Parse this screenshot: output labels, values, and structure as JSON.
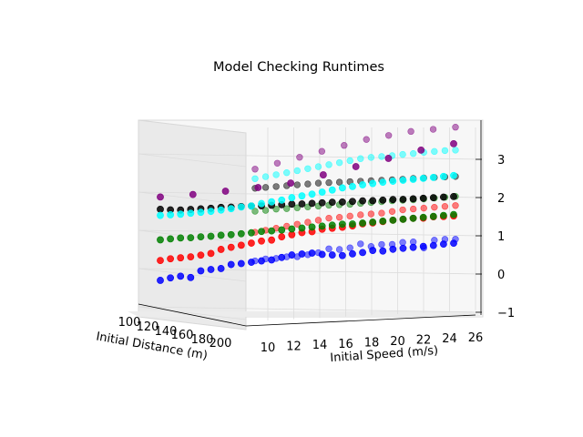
{
  "chart_data": {
    "type": "scatter",
    "projection": "3d",
    "title": "Model Checking Runtimes",
    "xlabel": "Initial Speed (m/s)",
    "ylabel": "Initial Distance (m)",
    "zlabel": "",
    "x_ticks": [
      "10",
      "12",
      "14",
      "16",
      "18",
      "20",
      "22",
      "24",
      "26"
    ],
    "y_ticks": [
      "100",
      "120",
      "140",
      "160",
      "180",
      "200"
    ],
    "z_ticks": [
      "−1",
      "0",
      "1",
      "2",
      "3"
    ],
    "xlim": [
      9,
      26
    ],
    "ylim": [
      100,
      200
    ],
    "zlim": [
      -1,
      3.8
    ],
    "grid": true,
    "series": [
      {
        "color": "#0000ff",
        "front": [
          0.12,
          0.18,
          0.22,
          0.18,
          0.35,
          0.38,
          0.4,
          0.5,
          0.52,
          0.55,
          0.58,
          0.6,
          0.66,
          0.72,
          0.74,
          0.76,
          0.72,
          0.7,
          0.68,
          0.72,
          0.75,
          0.8,
          0.78,
          0.82,
          0.84,
          0.86,
          0.88,
          0.9,
          0.93,
          0.95
        ],
        "back": [
          0.2,
          0.25,
          0.26,
          0.3,
          0.3,
          0.35,
          0.4,
          0.5,
          0.48,
          0.52,
          0.62,
          0.55,
          0.6,
          0.6,
          0.65,
          0.66,
          0.5,
          0.7,
          0.72,
          0.72
        ]
      },
      {
        "color": "#ff0000",
        "front": [
          0.64,
          0.68,
          0.7,
          0.72,
          0.76,
          0.8,
          0.9,
          0.95,
          1.0,
          1.05,
          1.1,
          1.12,
          1.2,
          1.25,
          1.3,
          1.32,
          1.38,
          1.4,
          1.42,
          1.45,
          1.5,
          1.52,
          1.55,
          1.58,
          1.6,
          1.62,
          1.62,
          1.65,
          1.65,
          1.66
        ],
        "back": [
          0.95,
          1.0,
          1.05,
          1.1,
          1.15,
          1.2,
          1.25,
          1.3,
          1.32,
          1.35,
          1.38,
          1.4,
          1.42,
          1.46,
          1.5,
          1.52,
          1.54,
          1.56,
          1.58,
          1.6
        ]
      },
      {
        "color": "#008000",
        "front": [
          1.18,
          1.2,
          1.22,
          1.22,
          1.24,
          1.25,
          1.27,
          1.28,
          1.3,
          1.32,
          1.35,
          1.36,
          1.38,
          1.4,
          1.42,
          1.44,
          1.46,
          1.48,
          1.5,
          1.5,
          1.52,
          1.54,
          1.56,
          1.58,
          1.6,
          1.62,
          1.64,
          1.66,
          1.68,
          1.7
        ],
        "back": [
          1.5,
          1.52,
          1.55,
          1.56,
          1.58,
          1.6,
          1.62,
          1.64,
          1.65,
          1.66,
          1.68,
          1.7,
          1.72,
          1.74,
          1.75,
          1.76,
          1.78,
          1.8,
          1.82,
          1.84
        ]
      },
      {
        "color": "#000000",
        "front": [
          1.98,
          1.96,
          1.95,
          1.96,
          1.97,
          1.98,
          2.0,
          2.0,
          2.01,
          2.02,
          2.02,
          2.03,
          2.04,
          2.05,
          2.05,
          2.06,
          2.07,
          2.08,
          2.08,
          2.09,
          2.1,
          2.1,
          2.11,
          2.12,
          2.12,
          2.13,
          2.14,
          2.15,
          2.16,
          2.17
        ],
        "back": [
          2.1,
          2.12,
          2.14,
          2.16,
          2.18,
          2.2,
          2.22,
          2.23,
          2.24,
          2.25,
          2.26,
          2.27,
          2.28,
          2.29,
          2.3,
          2.32,
          2.33,
          2.34,
          2.35,
          2.36
        ]
      },
      {
        "color": "#00ffff",
        "front": [
          1.82,
          1.83,
          1.84,
          1.86,
          1.88,
          1.9,
          1.93,
          1.96,
          2.0,
          2.02,
          2.08,
          2.12,
          2.16,
          2.22,
          2.26,
          2.3,
          2.35,
          2.4,
          2.45,
          2.48,
          2.52,
          2.55,
          2.58,
          2.6,
          2.62,
          2.64,
          2.66,
          2.68,
          2.7,
          2.72
        ],
        "back": [
          2.35,
          2.4,
          2.45,
          2.5,
          2.55,
          2.6,
          2.65,
          2.7,
          2.75,
          2.8,
          2.85,
          2.88,
          2.9,
          2.92,
          2.95,
          2.97,
          3.0,
          3.02,
          3.04,
          3.05
        ]
      },
      {
        "color": "#800080",
        "front": [
          2.3,
          2.35,
          2.42,
          2.5,
          2.6,
          2.8,
          3.0,
          3.2,
          3.4,
          3.55
        ],
        "back": [
          2.6,
          2.75,
          2.9,
          3.05,
          3.2,
          3.35,
          3.45,
          3.55,
          3.6,
          3.65
        ]
      }
    ]
  }
}
